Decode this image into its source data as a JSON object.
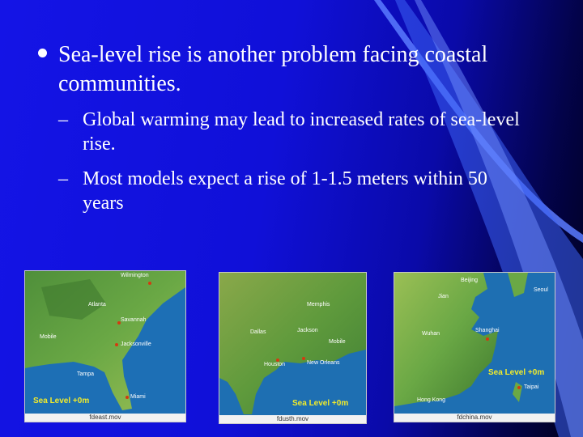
{
  "slide": {
    "bullet_main": "Sea-level rise is another problem facing coastal communities.",
    "sub_bullets": [
      "Global warming may lead to increased rates of sea-level rise.",
      "Most models expect a rise of 1-1.5 meters within 50 years"
    ],
    "dash": "–"
  },
  "maps": [
    {
      "caption": "fdeast.mov",
      "sea_level": "Sea Level +0m",
      "cities": [
        "Wilmington",
        "Atlanta",
        "Savannah",
        "Mobile",
        "Jacksonville",
        "Tampa",
        "Miami"
      ]
    },
    {
      "caption": "fdusth.mov",
      "sea_level": "Sea Level +0m",
      "cities": [
        "Memphis",
        "Dallas",
        "Jackson",
        "Mobile",
        "Houston",
        "New Orleans"
      ]
    },
    {
      "caption": "fdchina.mov",
      "sea_level": "Sea Level +0m",
      "cities": [
        "Beijing",
        "Seoul",
        "Jian",
        "Wuhan",
        "Shanghai",
        "Taipai",
        "Hong Kong"
      ]
    }
  ],
  "colors": {
    "background": "#1212e0",
    "text": "#ffffff",
    "sea_level_label": "#f3ec2a",
    "city_dot": "#d43a10"
  }
}
